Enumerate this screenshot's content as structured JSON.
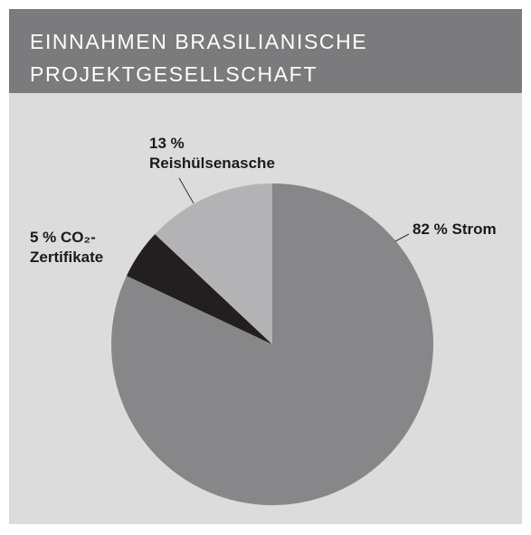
{
  "chart_data": {
    "type": "pie",
    "title": "EINNAHMEN BRASILIANISCHE PROJEKTGESELLSCHAFT",
    "categories": [
      "Strom",
      "CO₂-Zertifikate",
      "Reishülsenasche"
    ],
    "values": [
      82,
      5,
      13
    ],
    "value_labels": [
      "82 %",
      "5 %",
      "13 %"
    ],
    "colors": [
      "#87878a",
      "#231f20",
      "#b3b3b5"
    ]
  }
}
